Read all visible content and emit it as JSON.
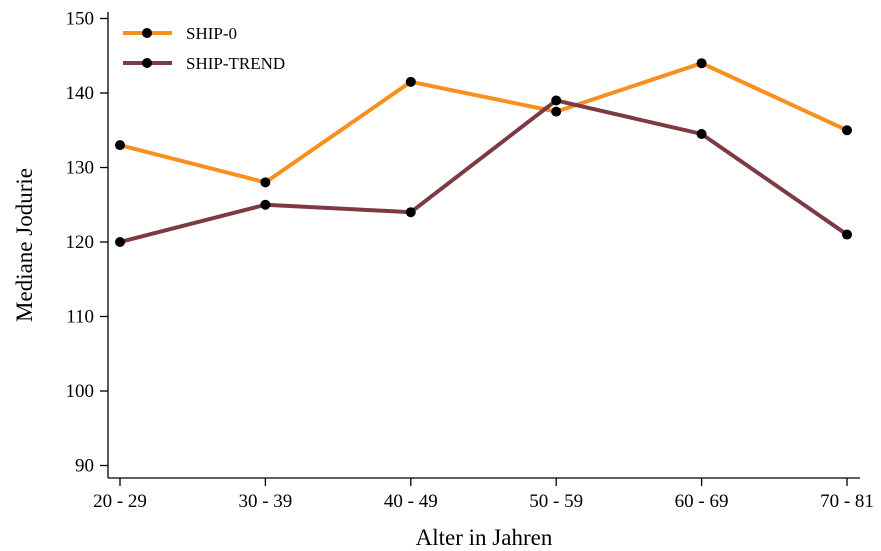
{
  "chart_data": {
    "type": "line",
    "title": "",
    "xlabel": "Alter in Jahren",
    "ylabel": "Mediane Jodurie",
    "categories": [
      "20 - 29",
      "30 - 39",
      "40 - 49",
      "50 - 59",
      "60 - 69",
      "70 - 81"
    ],
    "ylim": [
      88,
      152
    ],
    "yticks": [
      90,
      100,
      110,
      120,
      130,
      140,
      150
    ],
    "grid": false,
    "legend_position": "top-left",
    "series": [
      {
        "name": "SHIP-0",
        "color": "#F7901E",
        "values": [
          133,
          128,
          141.5,
          137.5,
          144,
          135
        ]
      },
      {
        "name": "SHIP-TREND",
        "color": "#7D3A43",
        "values": [
          120,
          125,
          124,
          139,
          134.5,
          121
        ]
      }
    ],
    "marker_color": "#000000"
  }
}
